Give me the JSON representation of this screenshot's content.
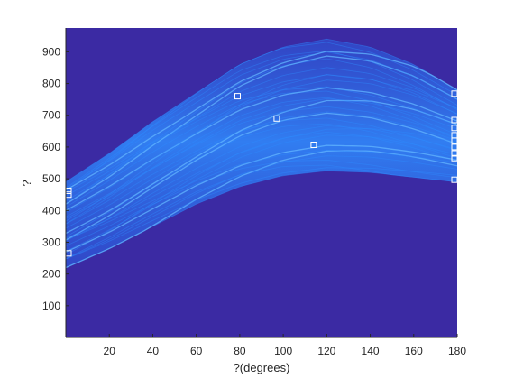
{
  "chart_data": {
    "type": "heatmap",
    "xlabel": "?(degrees)",
    "ylabel": "?",
    "xlim": [
      0,
      180
    ],
    "ylim": [
      0,
      975
    ],
    "xticks": [
      20,
      40,
      60,
      80,
      100,
      120,
      140,
      160,
      180
    ],
    "yticks": [
      100,
      200,
      300,
      400,
      500,
      600,
      700,
      800,
      900
    ],
    "grid": false,
    "colors": {
      "background": "#3b2aa3",
      "band": "#2f8cff",
      "band_light": "#62b6ff",
      "marker": "#ffffff",
      "axis": "#262626"
    },
    "band": {
      "upper_edge": [
        [
          0,
          490
        ],
        [
          20,
          580
        ],
        [
          40,
          680
        ],
        [
          60,
          770
        ],
        [
          80,
          860
        ],
        [
          100,
          915
        ],
        [
          120,
          940
        ],
        [
          140,
          915
        ],
        [
          160,
          860
        ],
        [
          180,
          780
        ]
      ],
      "lower_edge": [
        [
          0,
          220
        ],
        [
          20,
          280
        ],
        [
          40,
          350
        ],
        [
          60,
          420
        ],
        [
          80,
          475
        ],
        [
          100,
          510
        ],
        [
          120,
          525
        ],
        [
          140,
          520
        ],
        [
          160,
          505
        ],
        [
          180,
          490
        ]
      ]
    },
    "markers": [
      {
        "x": 0,
        "y": 265
      },
      {
        "x": 0,
        "y": 450
      },
      {
        "x": 0,
        "y": 462
      },
      {
        "x": 79,
        "y": 760
      },
      {
        "x": 97,
        "y": 690
      },
      {
        "x": 114,
        "y": 607
      },
      {
        "x": 180,
        "y": 497
      },
      {
        "x": 180,
        "y": 565
      },
      {
        "x": 180,
        "y": 580
      },
      {
        "x": 180,
        "y": 600
      },
      {
        "x": 180,
        "y": 620
      },
      {
        "x": 180,
        "y": 637
      },
      {
        "x": 180,
        "y": 660
      },
      {
        "x": 180,
        "y": 685
      },
      {
        "x": 180,
        "y": 768
      }
    ]
  }
}
